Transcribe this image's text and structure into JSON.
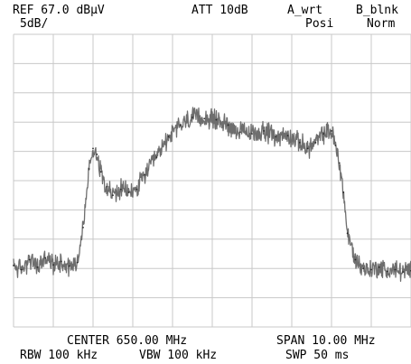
{
  "header": {
    "ref": "REF 67.0 dBμV",
    "scale": "5dB/",
    "att": "ATT 10dB",
    "trace_a": "A_wrt",
    "trace_a_mode": "Posi",
    "trace_b": "B_blnk",
    "trace_b_mode": "Norm"
  },
  "footer": {
    "center": "CENTER 650.00 MHz",
    "span": "SPAN 10.00 MHz",
    "rbw": "RBW 100 kHz",
    "vbw": "VBW 100 kHz",
    "swp": "SWP 50 ms"
  },
  "colors": {
    "grid": "#c8c8c8",
    "trace": "#6e6e6e",
    "trace_dark": "#2a2a2a",
    "text": "#000000"
  },
  "chart_data": {
    "type": "line",
    "title": "",
    "xlabel": "",
    "ylabel": "",
    "x_unit": "MHz",
    "y_unit": "dBμV",
    "xlim": [
      645.0,
      655.0
    ],
    "ylim": [
      17.0,
      67.0
    ],
    "grid": true,
    "grid_divisions": {
      "x": 10,
      "y": 10
    },
    "series": [
      {
        "values": [
          [
            645.0,
            27.5
          ],
          [
            645.2,
            26.8
          ],
          [
            645.4,
            28.5
          ],
          [
            645.6,
            27.2
          ],
          [
            645.8,
            28.8
          ],
          [
            646.0,
            27.6
          ],
          [
            646.2,
            28.2
          ],
          [
            646.4,
            27.4
          ],
          [
            646.6,
            28.0
          ],
          [
            646.75,
            34.0
          ],
          [
            646.9,
            44.0
          ],
          [
            647.0,
            47.5
          ],
          [
            647.1,
            46.5
          ],
          [
            647.2,
            43.5
          ],
          [
            647.35,
            41.0
          ],
          [
            647.5,
            39.5
          ],
          [
            647.7,
            40.5
          ],
          [
            647.9,
            40.0
          ],
          [
            648.1,
            40.5
          ],
          [
            648.3,
            43.0
          ],
          [
            648.6,
            46.0
          ],
          [
            648.9,
            49.5
          ],
          [
            649.2,
            51.5
          ],
          [
            649.5,
            52.8
          ],
          [
            649.8,
            52.6
          ],
          [
            650.1,
            52.4
          ],
          [
            650.4,
            51.5
          ],
          [
            650.7,
            50.3
          ],
          [
            651.0,
            50.0
          ],
          [
            651.3,
            50.5
          ],
          [
            651.6,
            49.5
          ],
          [
            651.9,
            49.7
          ],
          [
            652.2,
            48.5
          ],
          [
            652.4,
            47.5
          ],
          [
            652.6,
            48.5
          ],
          [
            652.8,
            50.0
          ],
          [
            653.0,
            50.5
          ],
          [
            653.1,
            48.0
          ],
          [
            653.2,
            45.0
          ],
          [
            653.3,
            40.0
          ],
          [
            653.4,
            33.0
          ],
          [
            653.6,
            28.5
          ],
          [
            653.8,
            27.0
          ],
          [
            654.0,
            26.8
          ],
          [
            654.2,
            27.2
          ],
          [
            654.4,
            26.5
          ],
          [
            654.6,
            26.8
          ],
          [
            654.8,
            26.4
          ],
          [
            655.0,
            26.6
          ]
        ]
      }
    ]
  }
}
